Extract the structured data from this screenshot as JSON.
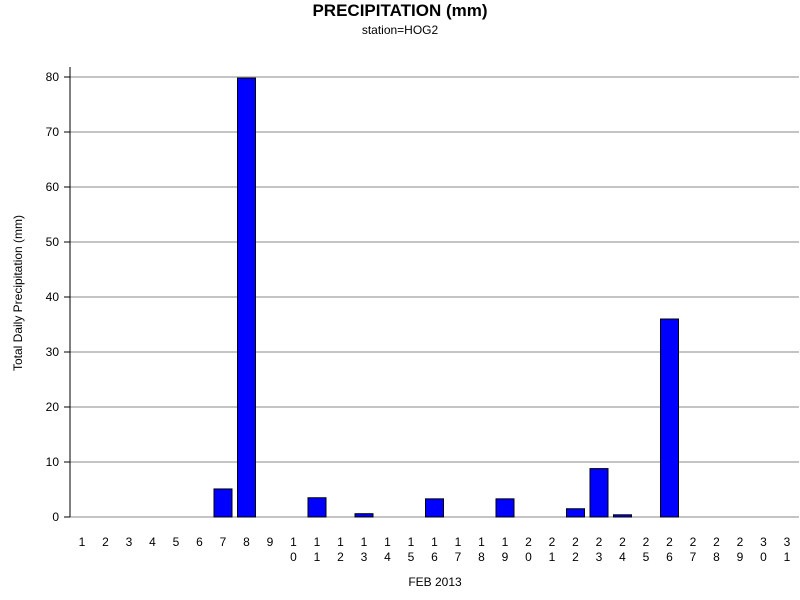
{
  "chart_data": {
    "type": "bar",
    "title": "PRECIPITATION (mm)",
    "subtitle": "station=HOG2",
    "xlabel": "FEB 2013",
    "ylabel": "Total Daily Precipitation (mm)",
    "ylim": [
      0,
      80
    ],
    "yticks": [
      0,
      10,
      20,
      30,
      40,
      50,
      60,
      70,
      80
    ],
    "categories": [
      "1",
      "2",
      "3",
      "4",
      "5",
      "6",
      "7",
      "8",
      "9",
      "10",
      "11",
      "12",
      "13",
      "14",
      "15",
      "16",
      "17",
      "18",
      "19",
      "20",
      "21",
      "22",
      "23",
      "24",
      "25",
      "26",
      "27",
      "28",
      "29",
      "30",
      "31"
    ],
    "values": [
      0,
      0,
      0,
      0,
      0,
      0,
      5.1,
      79.8,
      0,
      0,
      3.5,
      0,
      0.6,
      0,
      0,
      3.3,
      0,
      0,
      3.3,
      0,
      0,
      1.5,
      8.8,
      0.4,
      0,
      36.0,
      0,
      0,
      0,
      0,
      0
    ],
    "grid": true,
    "bar_color": "#0000ff",
    "legend": "none"
  }
}
